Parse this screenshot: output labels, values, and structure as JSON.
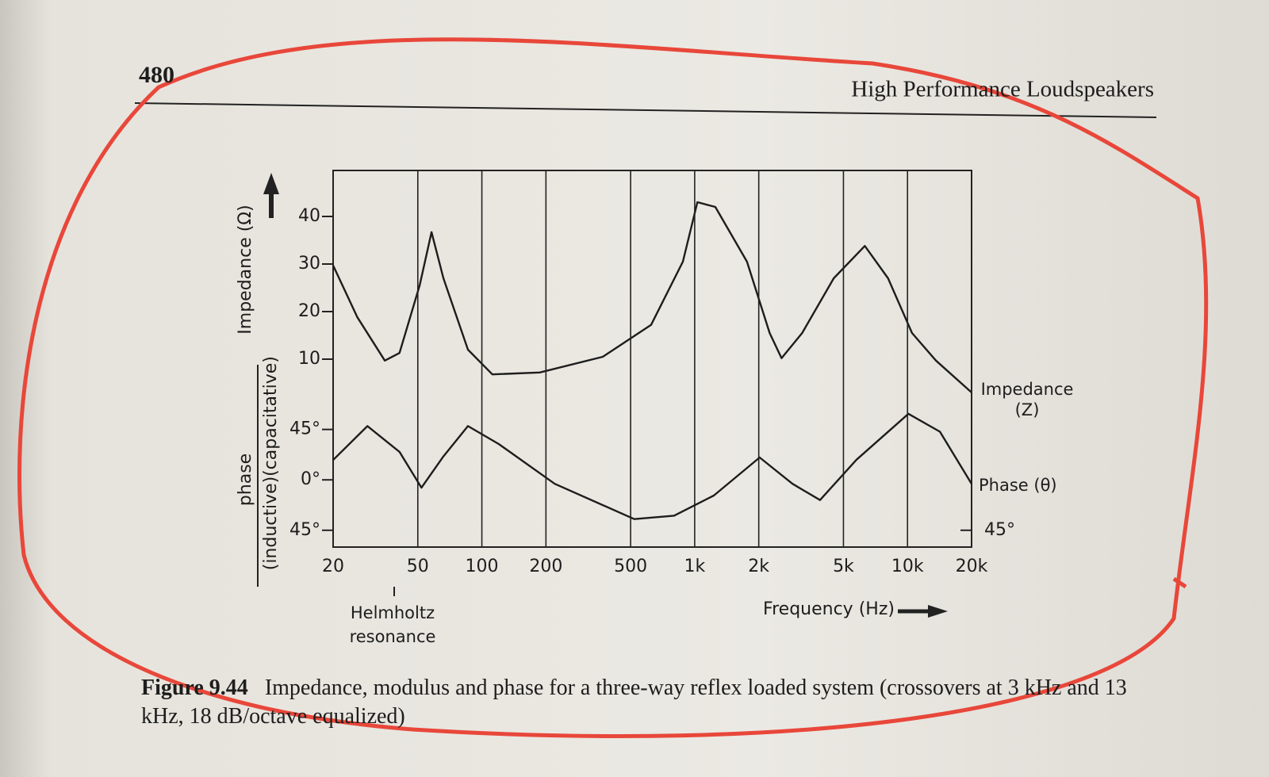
{
  "page": {
    "number": "480",
    "running_head": "High Performance Loudspeakers"
  },
  "chart_data": [
    {
      "type": "line",
      "ylabel": "Impedance (Ω)",
      "xscale": "log",
      "xlim": [
        20,
        20000
      ],
      "ylim": [
        0,
        50
      ],
      "yticks": [
        10,
        20,
        30,
        40
      ],
      "x": [
        20,
        26,
        35,
        41,
        51,
        58,
        66,
        86,
        112,
        187,
        370,
        624,
        880,
        1030,
        1250,
        1760,
        2250,
        2560,
        3200,
        4500,
        6300,
        8100,
        10500,
        13600,
        20000
      ],
      "series": [
        {
          "name": "Impedance (Z)",
          "color": "#1d1d1d",
          "values": [
            29.7,
            18.8,
            9.7,
            11.3,
            25.5,
            36.7,
            27,
            12,
            6.8,
            7.2,
            10.5,
            17.2,
            30.5,
            43,
            42,
            30.5,
            15.5,
            10.2,
            15.5,
            27,
            33.8,
            27,
            15.5,
            9.7,
            3
          ]
        }
      ]
    },
    {
      "type": "line",
      "ylabel": "phase",
      "ylabel_lower": "(inductive)",
      "ylabel_upper": "(capacitative)",
      "xscale": "log",
      "xlim": [
        20,
        20000
      ],
      "ylim": [
        -60,
        95
      ],
      "yticks": [
        {
          "value": 45,
          "label": "45°"
        },
        {
          "value": 0,
          "label": "0°"
        },
        {
          "value": -45,
          "label": "45°"
        }
      ],
      "right_ticks": [
        {
          "value": -45,
          "label": "45°"
        }
      ],
      "xticks": [
        20,
        50,
        100,
        200,
        500,
        {
          "value": 1000,
          "label": "1k"
        },
        {
          "value": 2000,
          "label": "2k"
        },
        {
          "value": 5000,
          "label": "5k"
        },
        {
          "value": 10000,
          "label": "10k"
        },
        {
          "value": 20000,
          "label": "20k"
        }
      ],
      "xlabel": "Frequency (Hz)",
      "annotation": "Helmholtz resonance",
      "x": [
        20,
        29,
        41,
        52,
        66,
        86,
        120,
        220,
        520,
        800,
        1230,
        2020,
        2880,
        3880,
        5760,
        10100,
        14200,
        20000
      ],
      "series": [
        {
          "name": "Phase (θ)",
          "color": "#1d1d1d",
          "values": [
            17.7,
            48,
            25,
            -7,
            21,
            48,
            32,
            -3.5,
            -35,
            -32,
            -14,
            20,
            -3.5,
            -18,
            18,
            59,
            43,
            -3.5
          ]
        }
      ]
    }
  ],
  "caption": {
    "label": "Figure 9.44",
    "text": "Impedance, modulus and phase for a three-way reflex loaded system (crossovers at 3 kHz and 13 kHz, 18 dB/octave equalized)"
  }
}
